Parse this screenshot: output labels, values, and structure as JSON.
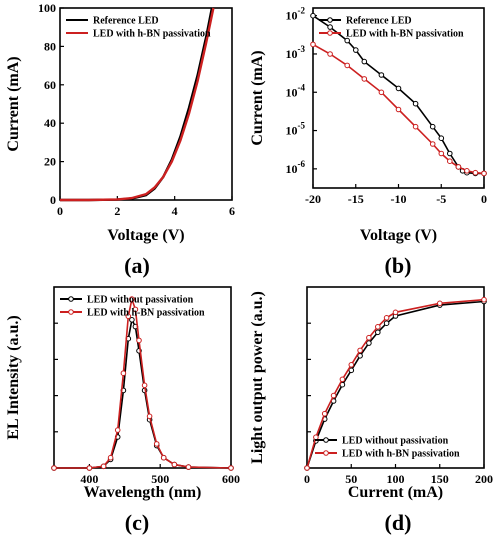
{
  "colors": {
    "black": "#000000",
    "red": "#cc2020",
    "red_dark": "#b01818",
    "gray_marker": "#666666"
  },
  "chart_data": [
    {
      "id": "a",
      "panel_label": "(a)",
      "type": "line",
      "xlabel": "Voltage (V)",
      "ylabel": "Current (mA)",
      "xlim": [
        0,
        6
      ],
      "ylim": [
        0,
        100
      ],
      "x_ticks": [
        0,
        2,
        4,
        6
      ],
      "y_ticks": [
        0,
        20,
        40,
        60,
        80,
        100
      ],
      "legend_position": "top-left",
      "series": [
        {
          "name": "Reference LED",
          "color": "black",
          "x": [
            0,
            1,
            2,
            2.5,
            3.0,
            3.3,
            3.6,
            3.9,
            4.2,
            4.5,
            4.8,
            5.1,
            5.3
          ],
          "y": [
            0,
            0,
            0.2,
            0.8,
            2.5,
            6,
            12,
            21,
            33,
            48,
            65,
            85,
            100
          ]
        },
        {
          "name": "LED with h-BN passivation",
          "color": "red",
          "x": [
            0,
            1,
            2,
            2.5,
            3.0,
            3.3,
            3.6,
            3.9,
            4.2,
            4.5,
            4.8,
            5.1,
            5.35
          ],
          "y": [
            0,
            0,
            0.3,
            1.0,
            3.0,
            6.5,
            12,
            20,
            31,
            45,
            62,
            82,
            100
          ]
        }
      ]
    },
    {
      "id": "b",
      "panel_label": "(b)",
      "type": "line",
      "xlabel": "Voltage (V)",
      "ylabel": "Current (mA)",
      "xlim": [
        -20,
        0
      ],
      "ylim_log10": [
        -6.5,
        -1.8
      ],
      "y_scale": "log",
      "x_ticks": [
        -20,
        -15,
        -10,
        -5,
        0
      ],
      "y_ticks_exp": [
        -6,
        -5,
        -4,
        -3,
        -2
      ],
      "legend_position": "top-right",
      "series": [
        {
          "name": "Reference LED",
          "color": "black",
          "x": [
            -20,
            -18,
            -16,
            -15,
            -14,
            -12,
            -10,
            -8,
            -6,
            -5,
            -4,
            -3,
            -2.5,
            -2,
            -1,
            0
          ],
          "y_log10": [
            -2.0,
            -2.3,
            -2.65,
            -2.9,
            -3.2,
            -3.55,
            -3.9,
            -4.3,
            -4.9,
            -5.2,
            -5.6,
            -5.95,
            -6.05,
            -6.1,
            -6.12,
            -6.12
          ]
        },
        {
          "name": "LED with h-BN passivation",
          "color": "red",
          "x": [
            -20,
            -18,
            -16,
            -14,
            -12,
            -10,
            -8,
            -6,
            -5,
            -4,
            -3,
            -2,
            -1,
            0
          ],
          "y_log10": [
            -2.75,
            -3.0,
            -3.3,
            -3.65,
            -4.0,
            -4.45,
            -4.9,
            -5.35,
            -5.6,
            -5.8,
            -5.95,
            -6.05,
            -6.1,
            -6.12
          ]
        }
      ]
    },
    {
      "id": "c",
      "panel_label": "(c)",
      "type": "line",
      "xlabel": "Wavelength (nm)",
      "ylabel": "EL Intensity (a.u.)",
      "xlim": [
        350,
        600
      ],
      "ylim": [
        0,
        1.05
      ],
      "x_ticks": [
        400,
        500,
        600
      ],
      "legend_position": "top-right",
      "series": [
        {
          "name": "LED without passivation",
          "color": "black",
          "x": [
            350,
            400,
            420,
            430,
            440,
            448,
            455,
            460,
            465,
            470,
            478,
            485,
            495,
            505,
            520,
            540,
            600
          ],
          "y": [
            0,
            0,
            0.01,
            0.05,
            0.18,
            0.45,
            0.75,
            0.86,
            0.82,
            0.68,
            0.45,
            0.28,
            0.13,
            0.06,
            0.02,
            0.005,
            0
          ]
        },
        {
          "name": "LED with h-BN passivation",
          "color": "red",
          "x": [
            350,
            400,
            420,
            430,
            440,
            448,
            455,
            460,
            465,
            470,
            478,
            485,
            495,
            505,
            520,
            540,
            600
          ],
          "y": [
            0,
            0,
            0.01,
            0.06,
            0.22,
            0.55,
            0.88,
            0.98,
            0.92,
            0.74,
            0.48,
            0.3,
            0.14,
            0.06,
            0.02,
            0.005,
            0
          ]
        }
      ]
    },
    {
      "id": "d",
      "panel_label": "(d)",
      "type": "line",
      "xlabel": "Current (mA)",
      "ylabel": "Light output power (a.u.)",
      "xlim": [
        0,
        200
      ],
      "ylim": [
        0,
        1.0
      ],
      "x_ticks": [
        0,
        50,
        100,
        150,
        200
      ],
      "legend_position": "bottom-right",
      "series": [
        {
          "name": "LED without passivation",
          "color": "black",
          "x": [
            0,
            10,
            20,
            30,
            40,
            50,
            60,
            70,
            80,
            90,
            100,
            150,
            200
          ],
          "y": [
            0.0,
            0.15,
            0.27,
            0.37,
            0.46,
            0.54,
            0.62,
            0.69,
            0.75,
            0.8,
            0.84,
            0.9,
            0.92
          ]
        },
        {
          "name": "LED with h-BN passivation",
          "color": "red",
          "x": [
            0,
            10,
            20,
            30,
            40,
            50,
            60,
            70,
            80,
            90,
            100,
            150,
            200
          ],
          "y": [
            0.0,
            0.17,
            0.3,
            0.4,
            0.49,
            0.57,
            0.65,
            0.72,
            0.78,
            0.83,
            0.86,
            0.91,
            0.93
          ]
        }
      ]
    }
  ]
}
